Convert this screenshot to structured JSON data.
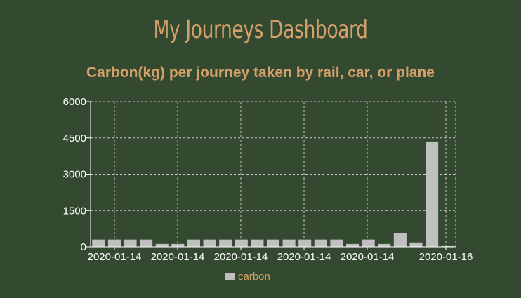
{
  "header": {
    "title": "My Journeys Dashboard",
    "subtitle": "Carbon(kg) per journey taken by rail, car, or plane"
  },
  "colors": {
    "background": "#344a30",
    "accent": "#d4a06a",
    "bar": "#c0c0c0",
    "grid": "#c8c8c8"
  },
  "chart_data": {
    "type": "bar",
    "title": "Carbon(kg) per journey taken by rail, car, or plane",
    "xlabel": "",
    "ylabel": "",
    "ylim": [
      0,
      6000
    ],
    "yticks": [
      0,
      1500,
      3000,
      4500,
      6000
    ],
    "xtick_labels": [
      "2020-01-14",
      "2020-01-14",
      "2020-01-14",
      "2020-01-14",
      "2020-01-14",
      "2020-01-16"
    ],
    "grid": true,
    "legend_position": "bottom",
    "series": [
      {
        "name": "carbon",
        "values": [
          300,
          300,
          300,
          300,
          120,
          120,
          300,
          300,
          300,
          300,
          300,
          300,
          300,
          300,
          300,
          300,
          120,
          300,
          120,
          560,
          180,
          4350,
          30
        ]
      }
    ]
  }
}
